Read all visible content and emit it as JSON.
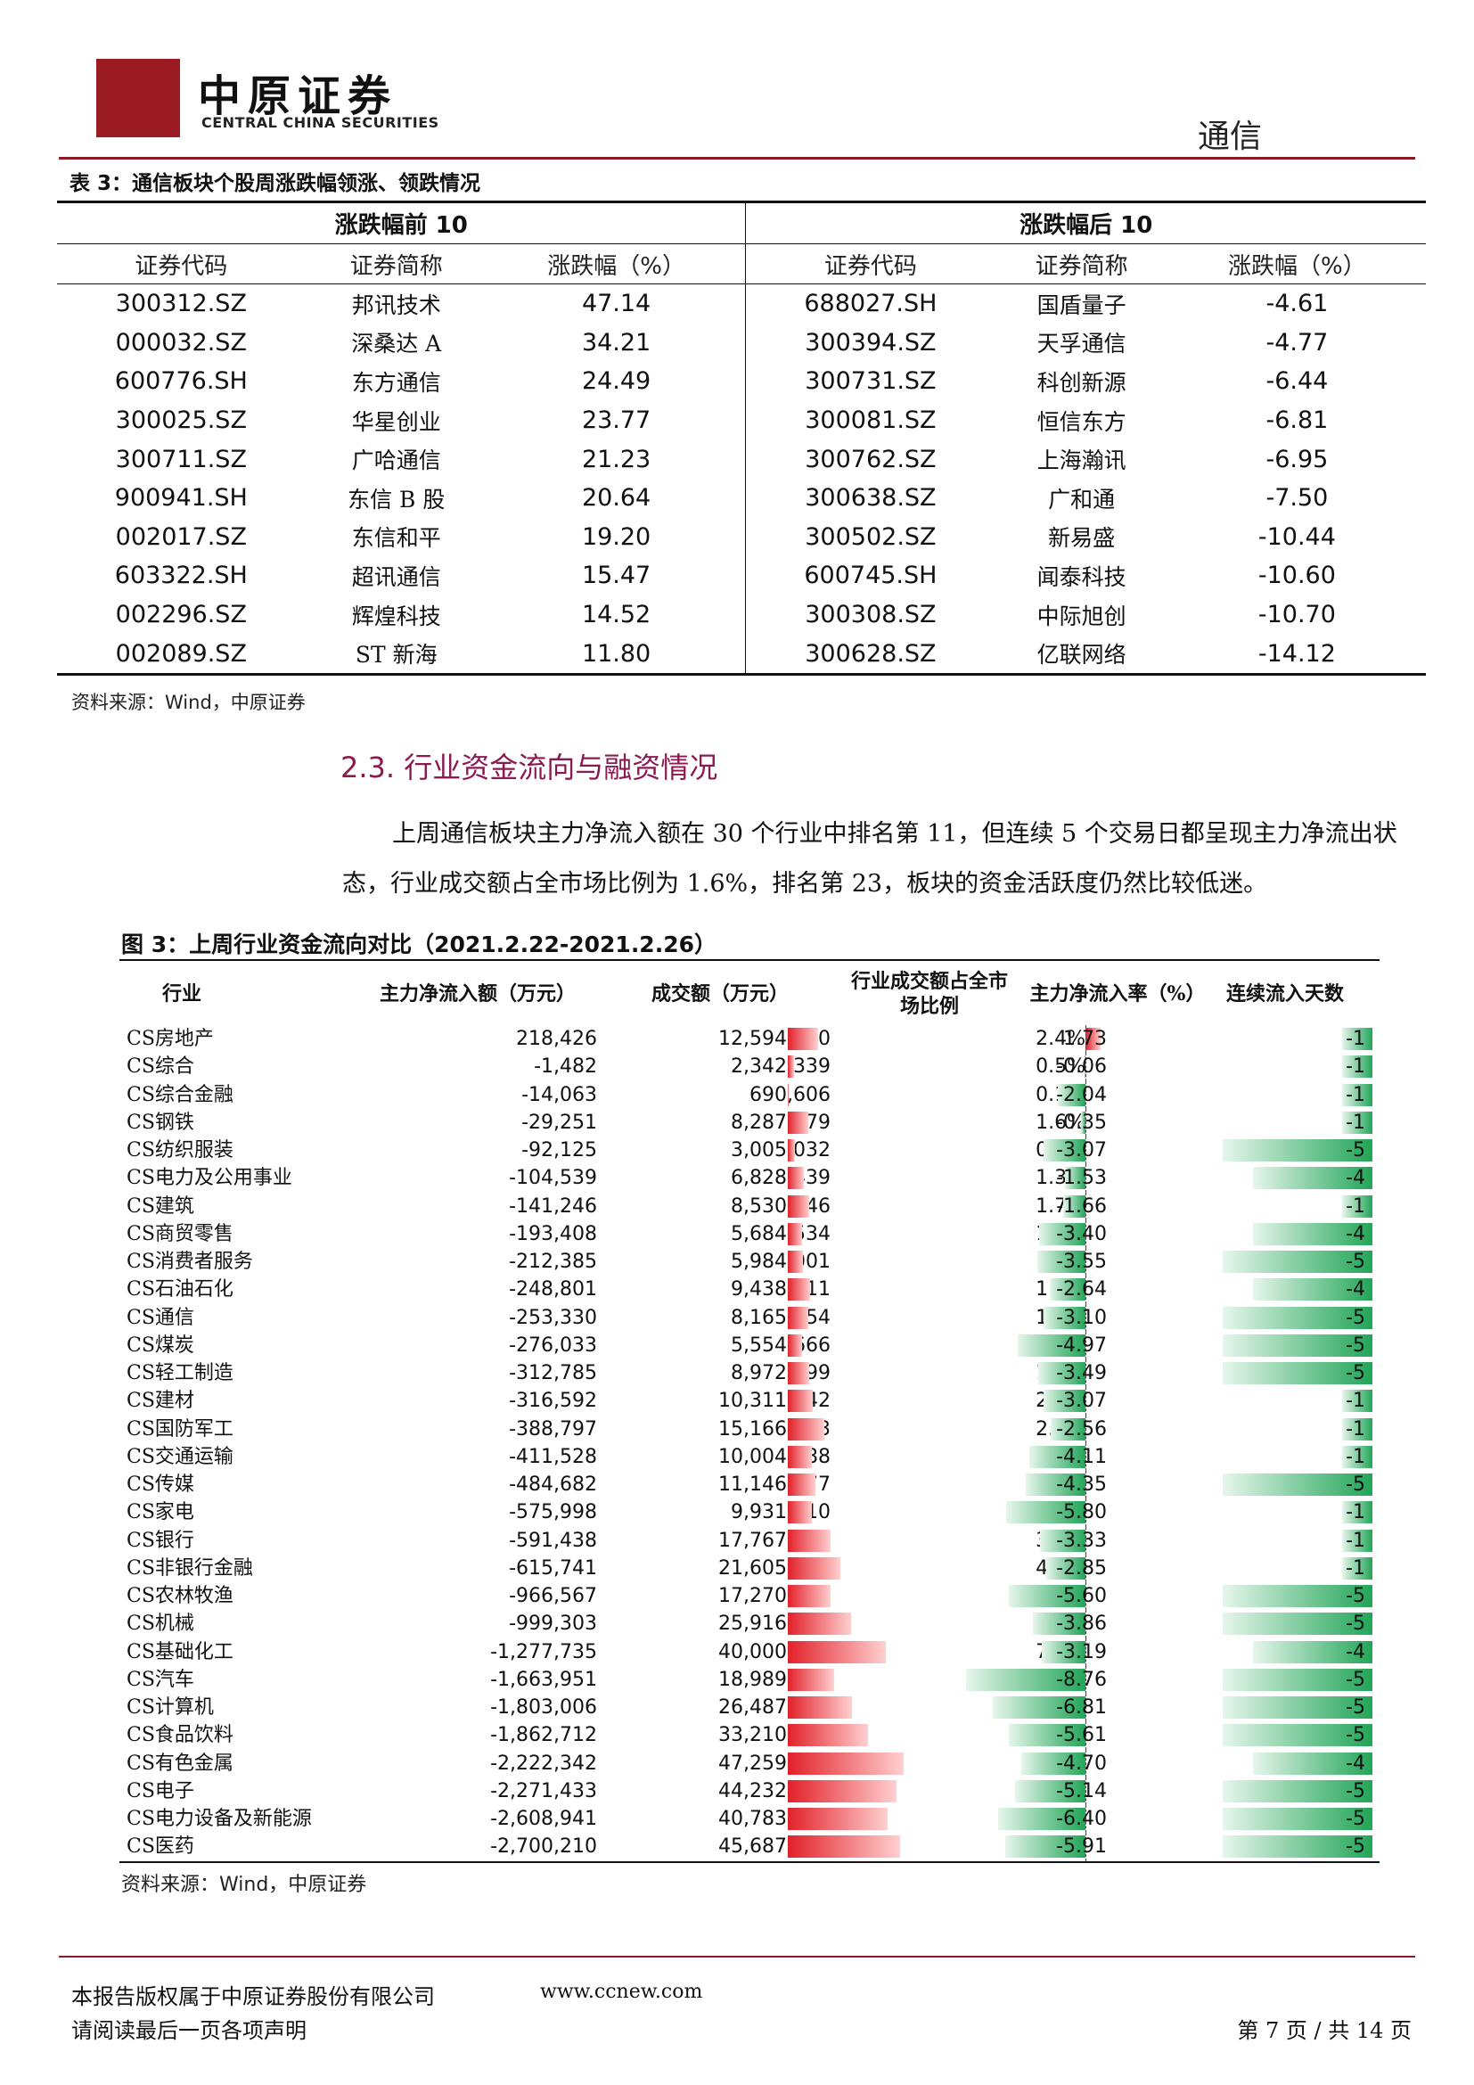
{
  "header": {
    "logo_cn": "中原证券",
    "logo_en": "CENTRAL CHINA SECURITIES",
    "section_name": "通信"
  },
  "table3": {
    "title": "表 3：通信板块个股周涨跌幅领涨、领跌情况",
    "group_left": "涨跌幅前 10",
    "group_right": "涨跌幅后 10",
    "col_code": "证券代码",
    "col_name": "证券简称",
    "col_pct": "涨跌幅（%）",
    "rows": [
      [
        "300312.SZ",
        "邦讯技术",
        "47.14",
        "688027.SH",
        "国盾量子",
        "-4.61"
      ],
      [
        "000032.SZ",
        "深桑达 A",
        "34.21",
        "300394.SZ",
        "天孚通信",
        "-4.77"
      ],
      [
        "600776.SH",
        "东方通信",
        "24.49",
        "300731.SZ",
        "科创新源",
        "-6.44"
      ],
      [
        "300025.SZ",
        "华星创业",
        "23.77",
        "300081.SZ",
        "恒信东方",
        "-6.81"
      ],
      [
        "300711.SZ",
        "广哈通信",
        "21.23",
        "300762.SZ",
        "上海瀚讯",
        "-6.95"
      ],
      [
        "900941.SH",
        "东信 B 股",
        "20.64",
        "300638.SZ",
        "广和通",
        "-7.50"
      ],
      [
        "002017.SZ",
        "东信和平",
        "19.20",
        "300502.SZ",
        "新易盛",
        "-10.44"
      ],
      [
        "603322.SH",
        "超讯通信",
        "15.47",
        "600745.SH",
        "闻泰科技",
        "-10.60"
      ],
      [
        "002296.SZ",
        "辉煌科技",
        "14.52",
        "300308.SZ",
        "中际旭创",
        "-10.70"
      ],
      [
        "002089.SZ",
        "ST 新海",
        "11.80",
        "300628.SZ",
        "亿联网络",
        "-14.12"
      ]
    ],
    "source": "资料来源：Wind，中原证券"
  },
  "section": {
    "title": "2.3. 行业资金流向与融资情况",
    "paragraph": "上周通信板块主力净流入额在 30 个行业中排名第 11，但连续 5 个交易日都呈现主力净流出状态，行业成交额占全市场比例为 1.6%，排名第 23，板块的资金活跃度仍然比较低迷。"
  },
  "figure3": {
    "title": "图 3：上周行业资金流向对比（2021.2.22-2021.2.26）",
    "col_industry": "行业",
    "col_net": "主力净流入额（万元）",
    "col_volume": "成交额（万元）",
    "col_share": "行业成交额占全市场比例",
    "col_rate": "主力净流入率（%）",
    "col_days": "连续流入天数",
    "source": "资料来源：Wind，中原证券"
  },
  "chart_data": {
    "type": "table",
    "columns": [
      "行业",
      "主力净流入额（万元）",
      "成交额（万元）",
      "行业成交额占全市场比例",
      "主力净流入率（%）",
      "连续流入天数"
    ],
    "rows": [
      [
        "CS房地产",
        "218,426",
        "12,594,090",
        "2.4%",
        "1.73",
        "-1"
      ],
      [
        "CS综合",
        "-1,482",
        "2,342,339",
        "0.5%",
        "-0.06",
        "-1"
      ],
      [
        "CS综合金融",
        "-14,063",
        "690,606",
        "0.1%",
        "-2.04",
        "-1"
      ],
      [
        "CS钢铁",
        "-29,251",
        "8,287,979",
        "1.6%",
        "-0.35",
        "-1"
      ],
      [
        "CS纺织服装",
        "-92,125",
        "3,005,032",
        "0.6%",
        "-3.07",
        "-5"
      ],
      [
        "CS电力及公用事业",
        "-104,539",
        "6,828,439",
        "1.3%",
        "-1.53",
        "-4"
      ],
      [
        "CS建筑",
        "-141,246",
        "8,530,446",
        "1.7%",
        "-1.66",
        "-1"
      ],
      [
        "CS商贸零售",
        "-193,408",
        "5,684,534",
        "1.1%",
        "-3.40",
        "-4"
      ],
      [
        "CS消费者服务",
        "-212,385",
        "5,984,001",
        "1.2%",
        "-3.55",
        "-5"
      ],
      [
        "CS石油石化",
        "-248,801",
        "9,438,211",
        "1.8%",
        "-2.64",
        "-4"
      ],
      [
        "CS通信",
        "-253,330",
        "8,165,854",
        "1.6%",
        "-3.10",
        "-5"
      ],
      [
        "CS煤炭",
        "-276,033",
        "5,554,666",
        "1.1%",
        "-4.97",
        "-5"
      ],
      [
        "CS轻工制造",
        "-312,785",
        "8,972,499",
        "1.7%",
        "-3.49",
        "-5"
      ],
      [
        "CS建材",
        "-316,592",
        "10,311,242",
        "2.0%",
        "-3.07",
        "-1"
      ],
      [
        "CS国防军工",
        "-388,797",
        "15,166,553",
        "2.9%",
        "-2.56",
        "-1"
      ],
      [
        "CS交通运输",
        "-411,528",
        "10,004,788",
        "1.9%",
        "-4.11",
        "-1"
      ],
      [
        "CS传媒",
        "-484,682",
        "11,146,977",
        "2.2%",
        "-4.35",
        "-5"
      ],
      [
        "CS家电",
        "-575,998",
        "9,931,710",
        "1.9%",
        "-5.80",
        "-1"
      ],
      [
        "CS银行",
        "-591,438",
        "17,767,112",
        "3.4%",
        "-3.33",
        "-1"
      ],
      [
        "CS非银行金融",
        "-615,741",
        "21,605,409",
        "4.2%",
        "-2.85",
        "-1"
      ],
      [
        "CS农林牧渔",
        "-966,567",
        "17,270,210",
        "3.4%",
        "-5.60",
        "-5"
      ],
      [
        "CS机械",
        "-999,303",
        "25,916,086",
        "5.0%",
        "-3.86",
        "-5"
      ],
      [
        "CS基础化工",
        "-1,277,735",
        "40,000,237",
        "7.8%",
        "-3.19",
        "-4"
      ],
      [
        "CS汽车",
        "-1,663,951",
        "18,989,936",
        "3.7%",
        "-8.76",
        "-5"
      ],
      [
        "CS计算机",
        "-1,803,006",
        "26,487,941",
        "5.1%",
        "-6.81",
        "-5"
      ],
      [
        "CS食品饮料",
        "-1,862,712",
        "33,210,480",
        "6.4%",
        "-5.61",
        "-5"
      ],
      [
        "CS有色金属",
        "-2,222,342",
        "47,259,880",
        "9.2%",
        "-4.70",
        "-4"
      ],
      [
        "CS电子",
        "-2,271,433",
        "44,232,194",
        "8.6%",
        "-5.14",
        "-5"
      ],
      [
        "CS电力设备及新能源",
        "-2,608,941",
        "40,783,302",
        "7.9%",
        "-6.40",
        "-5"
      ],
      [
        "CS医药",
        "-2,700,210",
        "45,687,539",
        "8.9%",
        "-5.91",
        "-5"
      ]
    ]
  },
  "footer": {
    "copyright": "本报告版权属于中原证券股份有限公司",
    "url": "www.ccnew.com",
    "notice": "请阅读最后一页各项声明",
    "page": "第 7 页 / 共 14 页"
  },
  "colors": {
    "brand": "#8b1a22",
    "positive": "#e2212a",
    "negative": "#22a558",
    "heading": "#8b1a50"
  }
}
